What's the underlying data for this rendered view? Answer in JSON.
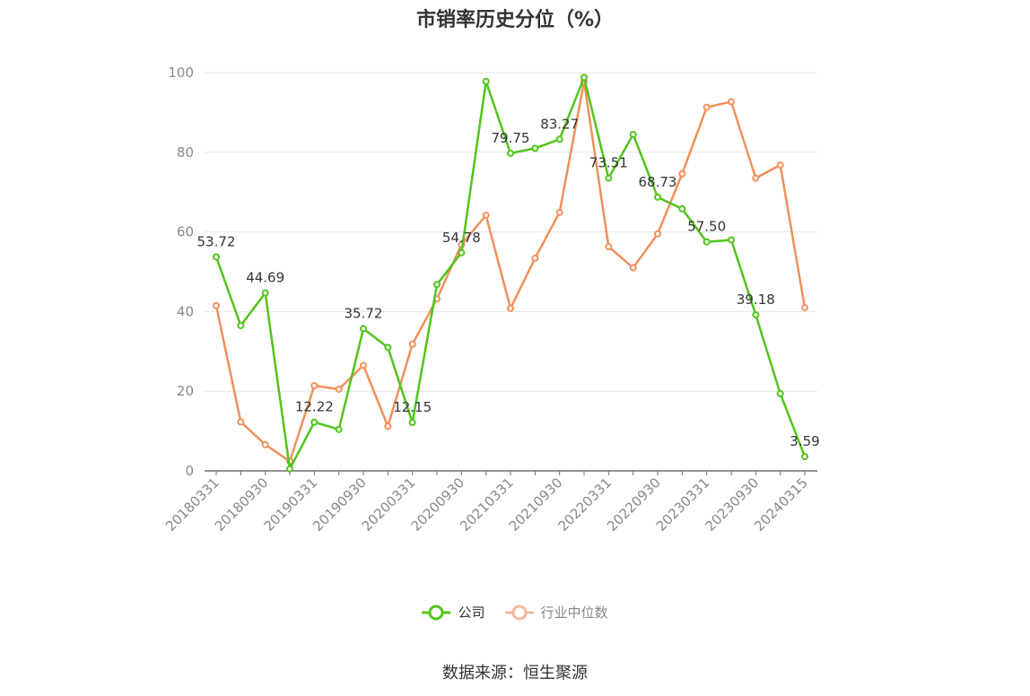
{
  "chart_data": {
    "type": "line",
    "title": "市销率历史分位（%）",
    "ylim": [
      0,
      100
    ],
    "yticks": [
      0,
      20,
      40,
      60,
      80,
      100
    ],
    "grid": true,
    "legend_position": "bottom",
    "x": [
      "20180331",
      "20180630",
      "20180930",
      "20181231",
      "20190331",
      "20190630",
      "20190930",
      "20191231",
      "20200331",
      "20200630",
      "20200930",
      "20201231",
      "20210331",
      "20210630",
      "20210930",
      "20211231",
      "20220331",
      "20220630",
      "20220930",
      "20221231",
      "20230331",
      "20230630",
      "20230930",
      "20231231",
      "20240315"
    ],
    "x_tick_labels": [
      "20180331",
      "20180930",
      "20190331",
      "20190930",
      "20200331",
      "20200930",
      "20210331",
      "20210930",
      "20220331",
      "20220930",
      "20230331",
      "20230930",
      "20240315"
    ],
    "series": [
      {
        "name": "公司",
        "color": "#52c41a",
        "values": [
          53.72,
          36.5,
          44.69,
          0.5,
          12.22,
          10.4,
          35.72,
          31.0,
          12.15,
          46.8,
          54.78,
          97.8,
          79.75,
          81.0,
          83.27,
          98.8,
          73.51,
          84.5,
          68.73,
          65.8,
          57.5,
          58.0,
          39.18,
          19.4,
          3.59
        ],
        "labeled": {
          "0": "53.72",
          "2": "44.69",
          "4": "12.22",
          "6": "35.72",
          "8": "12.15",
          "10": "54.78",
          "12": "79.75",
          "14": "83.27",
          "16": "73.51",
          "18": "68.73",
          "20": "57.50",
          "22": "39.18",
          "24": "3.59"
        }
      },
      {
        "name": "行业中位数",
        "color": "#f0905a",
        "values": [
          41.5,
          12.3,
          6.6,
          2.4,
          21.4,
          20.5,
          26.5,
          11.2,
          31.8,
          43.2,
          56.8,
          64.2,
          40.8,
          53.4,
          64.9,
          97.8,
          56.3,
          51.0,
          59.5,
          74.6,
          91.3,
          92.7,
          73.5,
          76.8,
          41.0
        ]
      }
    ]
  },
  "legend": {
    "items": [
      {
        "name": "公司",
        "color": "#52c41a",
        "active": true
      },
      {
        "name": "行业中位数",
        "color": "#f4b79c",
        "active": false
      }
    ]
  },
  "source": "数据来源：恒生聚源"
}
